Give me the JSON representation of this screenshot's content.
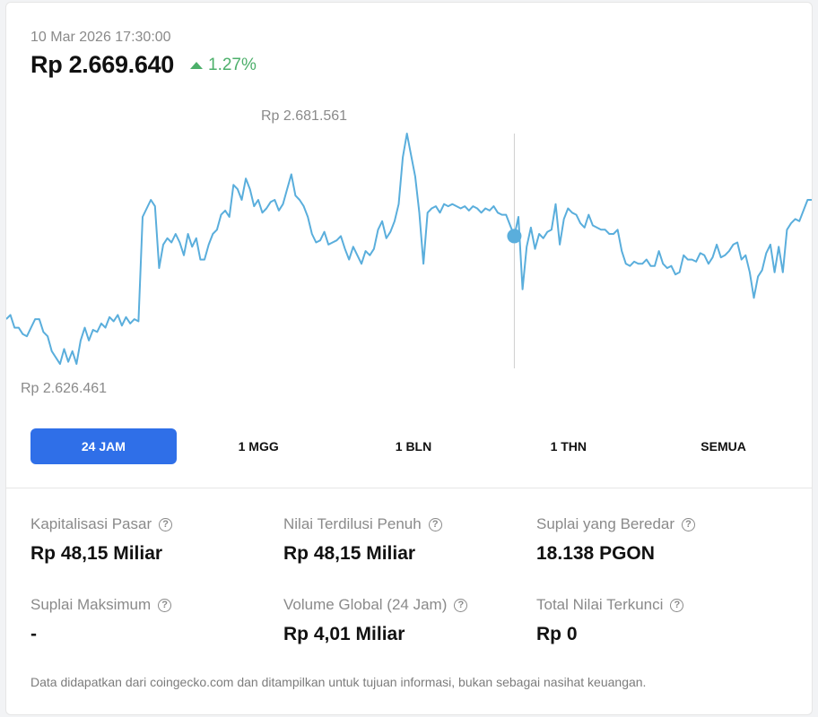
{
  "header": {
    "timestamp": "10 Mar 2026 17:30:00",
    "price": "Rp 2.669.640",
    "change": "1.27%",
    "change_direction": "up",
    "change_color": "#4caf6a"
  },
  "chart_data": {
    "type": "line",
    "title": "",
    "xlabel": "",
    "ylabel": "",
    "ylim": [
      2626461,
      2681561
    ],
    "line_color": "#5aaedc",
    "max_label": "Rp 2.681.561",
    "min_label": "Rp 2.626.461",
    "hover_index": 123,
    "series": [
      {
        "values": [
          2638000,
          2639000,
          2636000,
          2636000,
          2634500,
          2634000,
          2636000,
          2638000,
          2638000,
          2635000,
          2634000,
          2630500,
          2629000,
          2627500,
          2631000,
          2628000,
          2630500,
          2627500,
          2633000,
          2636000,
          2633000,
          2635500,
          2635000,
          2637000,
          2636000,
          2638500,
          2637500,
          2639000,
          2636500,
          2638500,
          2637000,
          2638000,
          2637500,
          2662000,
          2664000,
          2666000,
          2664500,
          2650000,
          2655500,
          2657000,
          2656000,
          2658000,
          2656000,
          2653000,
          2658000,
          2655000,
          2657000,
          2652000,
          2652000,
          2655500,
          2658000,
          2659000,
          2662500,
          2663500,
          2662000,
          2669500,
          2668500,
          2666000,
          2671000,
          2668500,
          2664500,
          2666000,
          2663000,
          2664000,
          2665500,
          2666000,
          2663500,
          2665000,
          2668500,
          2672000,
          2667000,
          2666000,
          2664500,
          2662000,
          2658000,
          2656000,
          2656500,
          2658500,
          2655500,
          2656000,
          2656500,
          2657500,
          2654500,
          2652000,
          2655000,
          2653000,
          2651000,
          2654000,
          2653000,
          2654500,
          2659000,
          2661000,
          2657000,
          2658500,
          2661000,
          2665000,
          2676000,
          2681561,
          2676500,
          2671500,
          2663000,
          2651000,
          2663000,
          2664000,
          2664500,
          2663000,
          2665000,
          2664500,
          2665000,
          2664500,
          2664000,
          2664500,
          2663500,
          2664500,
          2664000,
          2663000,
          2664000,
          2663500,
          2664500,
          2663000,
          2662500,
          2662500,
          2660000,
          2657500,
          2662000,
          2645000,
          2655000,
          2659500,
          2654500,
          2658000,
          2657000,
          2658500,
          2659000,
          2665000,
          2655500,
          2661500,
          2664000,
          2663000,
          2662500,
          2660500,
          2659500,
          2662500,
          2660000,
          2659500,
          2659000,
          2659000,
          2658000,
          2658000,
          2659000,
          2654000,
          2651000,
          2650500,
          2651500,
          2651000,
          2651000,
          2652000,
          2650500,
          2650500,
          2654000,
          2651000,
          2650000,
          2650500,
          2648500,
          2649000,
          2653000,
          2652000,
          2652000,
          2651500,
          2653500,
          2653000,
          2651000,
          2652500,
          2655500,
          2652500,
          2653000,
          2654000,
          2655500,
          2656000,
          2652000,
          2653000,
          2649000,
          2643000,
          2648000,
          2649500,
          2653500,
          2655500,
          2649000,
          2655000,
          2649000,
          2659000,
          2660500,
          2661500,
          2661000,
          2663500,
          2666000,
          2666000
        ]
      }
    ]
  },
  "tabs": [
    {
      "label": "24 JAM",
      "active": true
    },
    {
      "label": "1 MGG",
      "active": false
    },
    {
      "label": "1 BLN",
      "active": false
    },
    {
      "label": "1 THN",
      "active": false
    },
    {
      "label": "SEMUA",
      "active": false
    }
  ],
  "stats": [
    {
      "label": "Kapitalisasi Pasar",
      "value": "Rp 48,15 Miliar"
    },
    {
      "label": "Nilai Terdilusi Penuh",
      "value": "Rp 48,15 Miliar"
    },
    {
      "label": "Suplai yang Beredar",
      "value": "18.138 PGON"
    },
    {
      "label": "Suplai Maksimum",
      "value": "-"
    },
    {
      "label": "Volume Global (24 Jam)",
      "value": "Rp 4,01 Miliar"
    },
    {
      "label": "Total Nilai Terkunci",
      "value": "Rp 0"
    }
  ],
  "help_glyph": "?",
  "disclaimer": "Data didapatkan dari coingecko.com dan ditampilkan untuk tujuan informasi, bukan sebagai nasihat keuangan."
}
